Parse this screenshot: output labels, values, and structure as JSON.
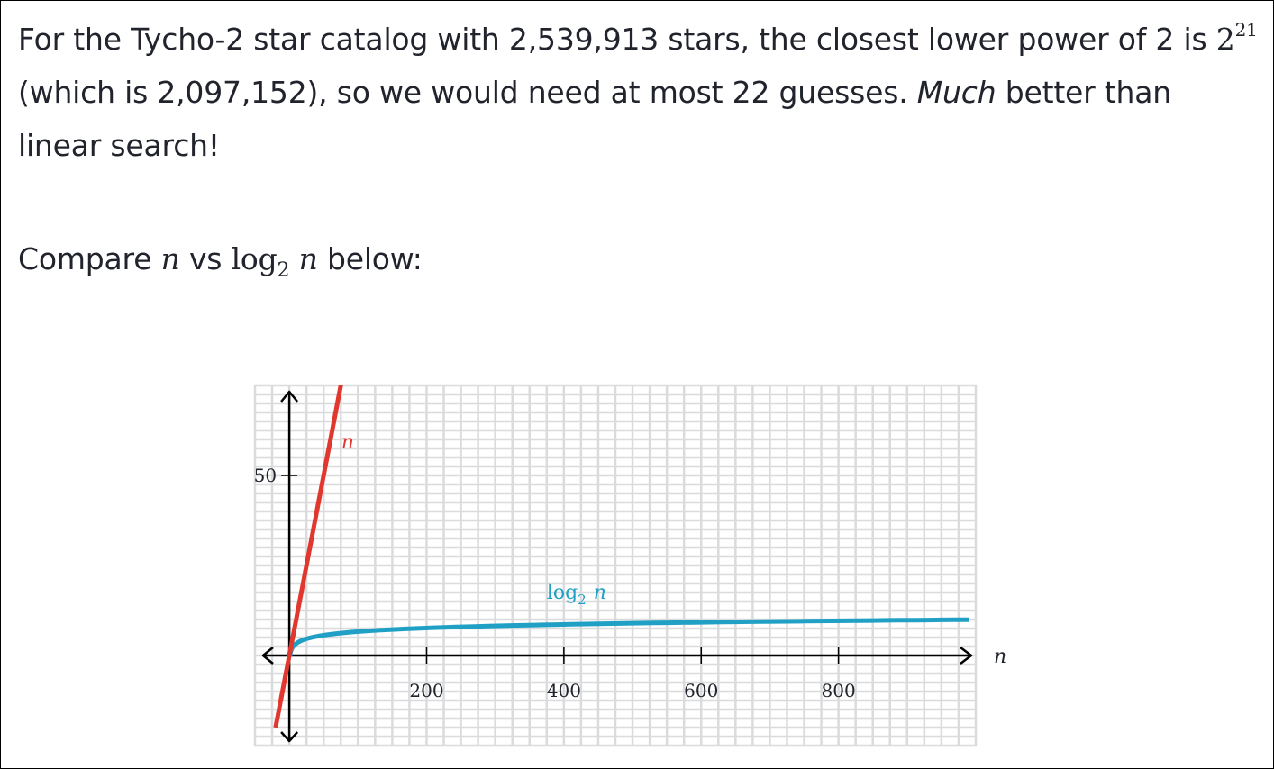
{
  "text": {
    "p1_a": "For the Tycho-2 star catalog with 2,539,913 stars, the closest lower power of 2 is ",
    "p1_base": "2",
    "p1_exp": "21",
    "p1_b": " (which is 2,097,152), so we would need at most 22 guesses. ",
    "p1_em": "Much",
    "p1_c": " better than linear search!",
    "p2_a": "Compare ",
    "p2_n1": "n",
    "p2_b": " vs ",
    "p2_log": "log",
    "p2_sub": "2",
    "p2_n2": "n",
    "p2_c": " below:"
  },
  "chart_data": {
    "type": "line",
    "title": "",
    "xlabel": "n",
    "ylabel": "",
    "xlim": [
      -50,
      1000
    ],
    "ylim": [
      -25,
      75
    ],
    "grid": true,
    "x_ticks": [
      "200",
      "400",
      "600",
      "800"
    ],
    "y_ticks": [
      "50"
    ],
    "series": [
      {
        "name": "n",
        "label": "n",
        "function": "y = n",
        "color": "#e0382f"
      },
      {
        "name": "log2 n",
        "label_main": "log",
        "label_sub": "2",
        "label_var": "n",
        "function": "y = log2(n)",
        "color": "#1fa0c4"
      }
    ]
  }
}
